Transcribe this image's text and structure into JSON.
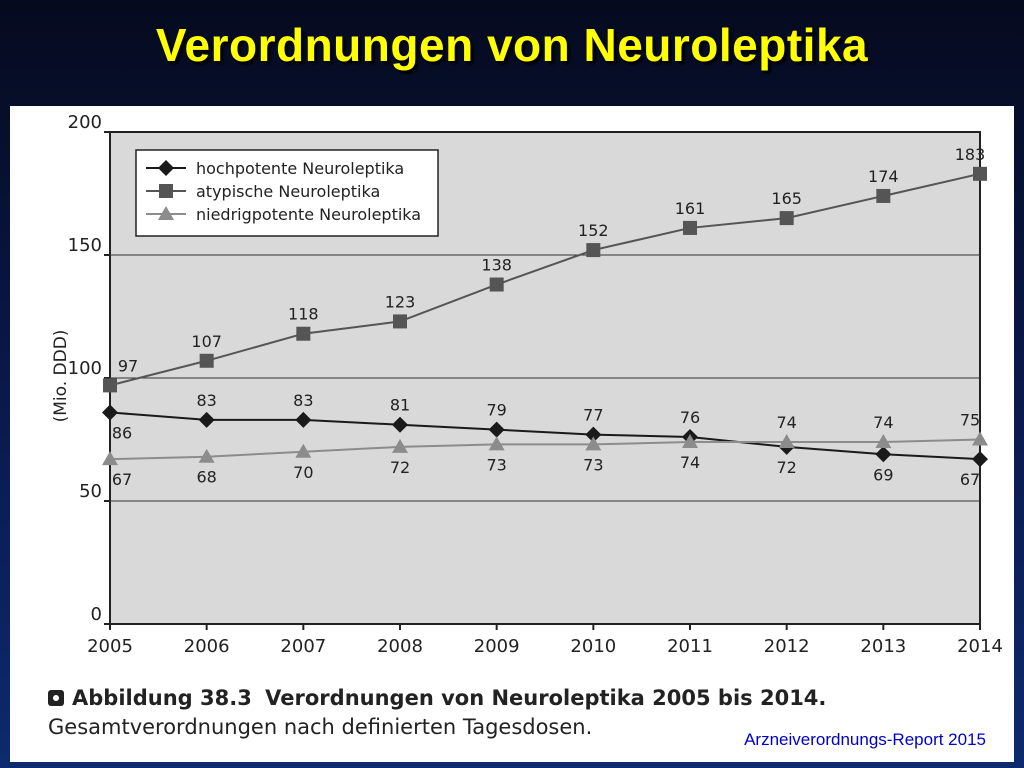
{
  "slide": {
    "title": "Verordnungen von Neuroleptika",
    "source": "Arzneiverordnungs-Report 2015"
  },
  "caption": {
    "label": "Abbildung 38.3",
    "bold_text": "Verordnungen von Neuroleptika 2005 bis 2014.",
    "text": "Gesamtverordnungen nach definierten Tagesdosen."
  },
  "colors": {
    "title": "#ffff00",
    "plot_bg": "#d9d9d9",
    "hoch": "#1a1a1a",
    "atyp": "#555555",
    "niedrig": "#8c8c8c",
    "source": "#0000cc"
  },
  "chart_data": {
    "type": "line",
    "title": "",
    "xlabel": "",
    "ylabel": "(Mio. DDD)",
    "ylim": [
      0,
      200
    ],
    "yticks": [
      0,
      50,
      100,
      150,
      200
    ],
    "grid": true,
    "legend_position": "top-left",
    "x": [
      "2005",
      "2006",
      "2007",
      "2008",
      "2009",
      "2010",
      "2011",
      "2012",
      "2013",
      "2014"
    ],
    "series": [
      {
        "name": "hochpotente Neuroleptika",
        "marker": "diamond",
        "values": [
          86,
          83,
          83,
          81,
          79,
          77,
          76,
          72,
          69,
          67
        ]
      },
      {
        "name": "atypische Neuroleptika",
        "marker": "square",
        "values": [
          97,
          107,
          118,
          123,
          138,
          152,
          161,
          165,
          174,
          183
        ]
      },
      {
        "name": "niedrigpotente Neuroleptika",
        "marker": "triangle",
        "values": [
          67,
          68,
          70,
          72,
          73,
          73,
          74,
          74,
          74,
          75
        ]
      }
    ]
  }
}
